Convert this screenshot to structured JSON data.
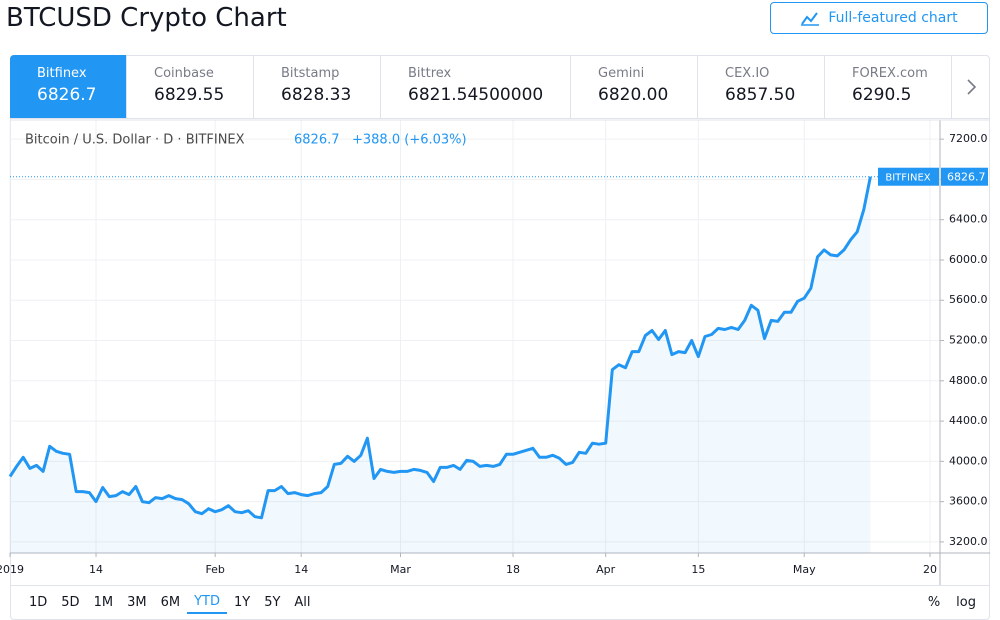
{
  "header": {
    "title": "BTCUSD Crypto Chart",
    "button": "Full-featured chart"
  },
  "tabs": [
    {
      "name": "Bitfinex",
      "price": "6826.7",
      "active": true
    },
    {
      "name": "Coinbase",
      "price": "6829.55"
    },
    {
      "name": "Bitstamp",
      "price": "6828.33"
    },
    {
      "name": "Bittrex",
      "price": "6821.54500000"
    },
    {
      "name": "Gemini",
      "price": "6820.00"
    },
    {
      "name": "CEX.IO",
      "price": "6857.50"
    },
    {
      "name": "FOREX.com",
      "price": "6290.5"
    }
  ],
  "chart_data": {
    "type": "line",
    "legend_title": "Bitcoin / U.S. Dollar · D · BITFINEX",
    "last_price": 6826.7,
    "change": "+388.0 (+6.03%)",
    "price_tag_label": "BITFINEX",
    "categories": [
      "2019",
      null,
      null,
      null,
      null,
      null,
      null,
      null,
      null,
      null,
      null,
      null,
      null,
      "14",
      null,
      null,
      null,
      null,
      null,
      null,
      null,
      null,
      null,
      null,
      null,
      null,
      null,
      null,
      null,
      null,
      null,
      "Feb",
      null,
      null,
      null,
      null,
      null,
      null,
      null,
      null,
      null,
      null,
      null,
      null,
      "14",
      null,
      null,
      null,
      null,
      null,
      null,
      null,
      null,
      null,
      null,
      null,
      null,
      null,
      null,
      "Mar",
      null,
      null,
      null,
      null,
      null,
      null,
      null,
      null,
      null,
      null,
      null,
      null,
      null,
      null,
      null,
      null,
      "18",
      null,
      null,
      null,
      null,
      null,
      null,
      null,
      null,
      null,
      null,
      null,
      null,
      null,
      "Apr",
      null,
      null,
      null,
      null,
      null,
      null,
      null,
      null,
      null,
      null,
      null,
      null,
      null,
      "15",
      null,
      null,
      null,
      null,
      null,
      null,
      null,
      null,
      null,
      null,
      null,
      null,
      null,
      null,
      null,
      "May",
      null,
      null,
      null,
      null,
      null,
      null,
      null,
      null,
      null,
      null,
      null,
      null,
      null,
      null,
      null,
      null,
      null,
      null,
      "20",
      null,
      null
    ],
    "series": [
      {
        "name": "BTCUSD",
        "color": "#2196f3",
        "values": [
          3850,
          3950,
          4040,
          3930,
          3960,
          3900,
          4150,
          4100,
          4080,
          4070,
          3700,
          3700,
          3690,
          3600,
          3740,
          3650,
          3660,
          3700,
          3670,
          3750,
          3600,
          3590,
          3640,
          3630,
          3660,
          3630,
          3620,
          3580,
          3500,
          3480,
          3530,
          3500,
          3520,
          3560,
          3500,
          3490,
          3510,
          3450,
          3440,
          3710,
          3710,
          3750,
          3680,
          3690,
          3670,
          3660,
          3680,
          3690,
          3750,
          3970,
          3980,
          4050,
          4000,
          4060,
          4230,
          3830,
          3920,
          3900,
          3890,
          3900,
          3900,
          3920,
          3910,
          3890,
          3800,
          3940,
          3940,
          3960,
          3920,
          4010,
          4000,
          3950,
          3960,
          3950,
          3970,
          4070,
          4070,
          4090,
          4110,
          4130,
          4040,
          4040,
          4060,
          4030,
          3970,
          3990,
          4090,
          4080,
          4180,
          4170,
          4180,
          4910,
          4960,
          4930,
          5090,
          5090,
          5250,
          5300,
          5210,
          5300,
          5060,
          5090,
          5080,
          5200,
          5040,
          5240,
          5260,
          5320,
          5310,
          5330,
          5310,
          5400,
          5550,
          5500,
          5220,
          5400,
          5390,
          5480,
          5480,
          5590,
          5620,
          5720,
          6030,
          6100,
          6050,
          6040,
          6100,
          6200,
          6280,
          6500,
          6826.7,
          null,
          null,
          null,
          null,
          null,
          null,
          null,
          null,
          null,
          null,
          null
        ]
      }
    ],
    "ylim": [
      3090,
      7390
    ],
    "yticks": [
      {
        "value": 3200,
        "label": "3200.0"
      },
      {
        "value": 3600,
        "label": "3600.0"
      },
      {
        "value": 4000,
        "label": "4000.0"
      },
      {
        "value": 4400,
        "label": "4400.0"
      },
      {
        "value": 4800,
        "label": "4800.0"
      },
      {
        "value": 5200,
        "label": "5200.0"
      },
      {
        "value": 5600,
        "label": "5600.0"
      },
      {
        "value": 6000,
        "label": "6000.0"
      },
      {
        "value": 6400,
        "label": "6400.0"
      },
      {
        "value": 6800,
        "label": "6800.0"
      },
      {
        "value": 7200,
        "label": "7200.0"
      }
    ],
    "grid": true
  },
  "footer": {
    "ranges": [
      "1D",
      "5D",
      "1M",
      "3M",
      "6M",
      "YTD",
      "1Y",
      "5Y",
      "All"
    ],
    "active_range": 5,
    "options": [
      "%",
      "log"
    ]
  }
}
